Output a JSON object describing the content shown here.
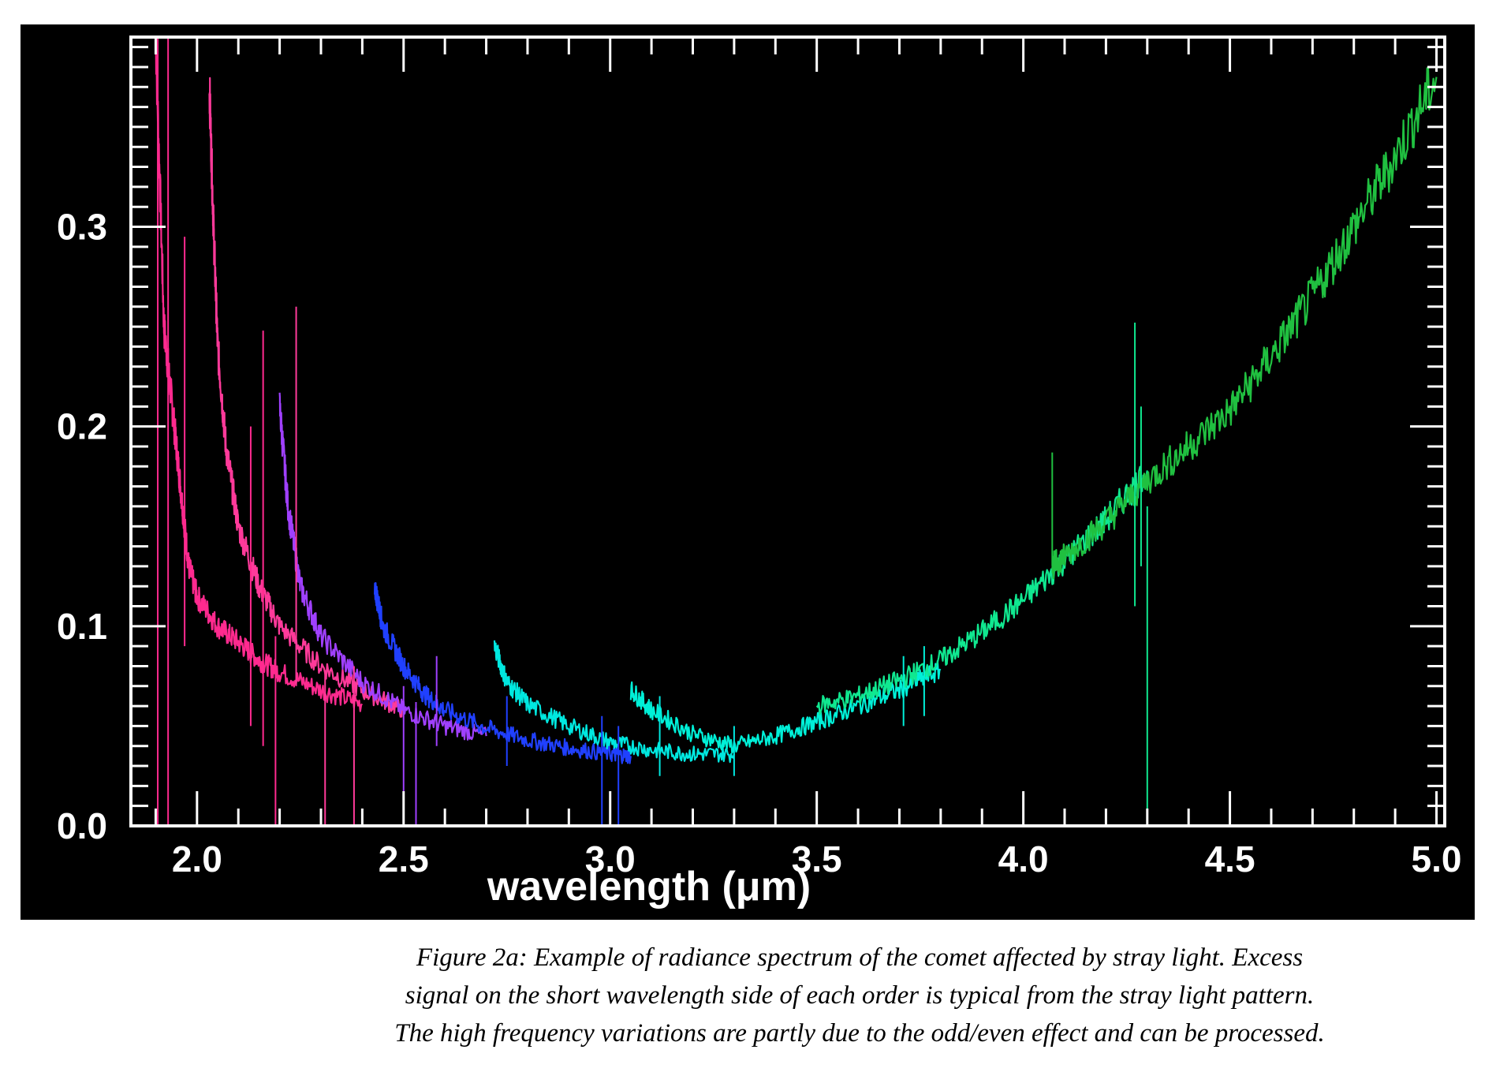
{
  "caption": {
    "lines": [
      "Figure 2a: Example of radiance spectrum of the comet affected by stray light. Excess",
      "signal on the short wavelength side of each order is typical from the stray light pattern.",
      "The high frequency variations are partly due to the odd/even effect and can be processed."
    ]
  },
  "chart_data": {
    "type": "line",
    "title": "",
    "xlabel": "wavelength (μm)",
    "ylabel": "",
    "xlim": [
      1.84,
      5.02
    ],
    "ylim": [
      0.0,
      0.395
    ],
    "x_ticks": [
      2.0,
      2.5,
      3.0,
      3.5,
      4.0,
      4.5,
      5.0
    ],
    "x_tick_labels": [
      "2.0",
      "2.5",
      "3.0",
      "3.5",
      "4.0",
      "4.5",
      "5.0"
    ],
    "y_ticks": [
      0.0,
      0.1,
      0.2,
      0.3
    ],
    "y_tick_labels": [
      "0.0",
      "0.1",
      "0.2",
      "0.3"
    ],
    "grid": false,
    "legend": "none",
    "background": "#000000",
    "foreground": "#ffffff",
    "series": [
      {
        "color": "#ff2a8f",
        "x": [
          1.9,
          1.92,
          1.94,
          1.96,
          1.98,
          2.0,
          2.05,
          2.1,
          2.15,
          2.2,
          2.3,
          2.4
        ],
        "y": [
          0.395,
          0.25,
          0.21,
          0.17,
          0.13,
          0.115,
          0.1,
          0.092,
          0.083,
          0.077,
          0.068,
          0.061
        ]
      },
      {
        "color": "#ff3a9a",
        "x": [
          2.03,
          2.04,
          2.05,
          2.07,
          2.1,
          2.15,
          2.2,
          2.3,
          2.4,
          2.5
        ],
        "y": [
          0.37,
          0.3,
          0.24,
          0.19,
          0.15,
          0.12,
          0.1,
          0.08,
          0.068,
          0.058
        ]
      },
      {
        "color": "#a040ff",
        "x": [
          2.2,
          2.22,
          2.25,
          2.3,
          2.4,
          2.5,
          2.6,
          2.7
        ],
        "y": [
          0.21,
          0.16,
          0.12,
          0.095,
          0.072,
          0.058,
          0.05,
          0.045
        ]
      },
      {
        "color": "#2040ff",
        "x": [
          2.43,
          2.45,
          2.5,
          2.55,
          2.6,
          2.7,
          2.8,
          2.9,
          3.0,
          3.05
        ],
        "y": [
          0.12,
          0.1,
          0.08,
          0.066,
          0.058,
          0.049,
          0.043,
          0.039,
          0.036,
          0.035
        ]
      },
      {
        "color": "#00e8e0",
        "x": [
          2.72,
          2.75,
          2.8,
          2.9,
          3.0,
          3.1,
          3.2,
          3.3
        ],
        "y": [
          0.09,
          0.072,
          0.061,
          0.05,
          0.042,
          0.038,
          0.036,
          0.036
        ]
      },
      {
        "color": "#00f0d8",
        "x": [
          3.05,
          3.1,
          3.2,
          3.3,
          3.4,
          3.5,
          3.6,
          3.7,
          3.8
        ],
        "y": [
          0.068,
          0.058,
          0.046,
          0.04,
          0.045,
          0.052,
          0.06,
          0.068,
          0.078
        ]
      },
      {
        "color": "#10e890",
        "x": [
          3.5,
          3.6,
          3.7,
          3.8,
          3.9,
          4.0,
          4.1,
          4.2,
          4.3
        ],
        "y": [
          0.06,
          0.065,
          0.073,
          0.083,
          0.097,
          0.113,
          0.133,
          0.153,
          0.178
        ]
      },
      {
        "color": "#20c040",
        "x": [
          4.07,
          4.1,
          4.2,
          4.3,
          4.4,
          4.5,
          4.6,
          4.7,
          4.8,
          4.9,
          5.0
        ],
        "y": [
          0.13,
          0.135,
          0.152,
          0.173,
          0.19,
          0.208,
          0.235,
          0.265,
          0.3,
          0.335,
          0.375
        ]
      }
    ],
    "spikes": [
      {
        "x": 1.905,
        "y0": 0.0,
        "y1": 0.395,
        "color": "#ff2a8f"
      },
      {
        "x": 1.93,
        "y0": 0.0,
        "y1": 0.395,
        "color": "#ff2a8f"
      },
      {
        "x": 1.97,
        "y0": 0.09,
        "y1": 0.295,
        "color": "#ff2a8f"
      },
      {
        "x": 2.13,
        "y0": 0.05,
        "y1": 0.2,
        "color": "#ff2a8f"
      },
      {
        "x": 2.16,
        "y0": 0.04,
        "y1": 0.248,
        "color": "#ff2a8f"
      },
      {
        "x": 2.19,
        "y0": 0.0,
        "y1": 0.095,
        "color": "#ff2a8f"
      },
      {
        "x": 2.24,
        "y0": 0.07,
        "y1": 0.26,
        "color": "#ff3a9a"
      },
      {
        "x": 2.31,
        "y0": 0.0,
        "y1": 0.078,
        "color": "#ff3a9a"
      },
      {
        "x": 2.38,
        "y0": 0.0,
        "y1": 0.08,
        "color": "#ff3a9a"
      },
      {
        "x": 2.5,
        "y0": 0.0,
        "y1": 0.07,
        "color": "#a040ff"
      },
      {
        "x": 2.53,
        "y0": 0.0,
        "y1": 0.062,
        "color": "#a040ff"
      },
      {
        "x": 2.58,
        "y0": 0.04,
        "y1": 0.085,
        "color": "#a040ff"
      },
      {
        "x": 2.75,
        "y0": 0.03,
        "y1": 0.065,
        "color": "#2040ff"
      },
      {
        "x": 2.98,
        "y0": 0.0,
        "y1": 0.055,
        "color": "#2040ff"
      },
      {
        "x": 3.02,
        "y0": 0.0,
        "y1": 0.05,
        "color": "#2040ff"
      },
      {
        "x": 3.12,
        "y0": 0.025,
        "y1": 0.065,
        "color": "#00e8e0"
      },
      {
        "x": 3.3,
        "y0": 0.025,
        "y1": 0.05,
        "color": "#00e8e0"
      },
      {
        "x": 3.71,
        "y0": 0.05,
        "y1": 0.085,
        "color": "#00f0d8"
      },
      {
        "x": 3.76,
        "y0": 0.055,
        "y1": 0.09,
        "color": "#00f0d8"
      },
      {
        "x": 4.07,
        "y0": 0.13,
        "y1": 0.187,
        "color": "#20c040"
      },
      {
        "x": 4.27,
        "y0": 0.11,
        "y1": 0.252,
        "color": "#10e890"
      },
      {
        "x": 4.285,
        "y0": 0.13,
        "y1": 0.21,
        "color": "#10e890"
      },
      {
        "x": 4.3,
        "y0": 0.0,
        "y1": 0.16,
        "color": "#10e890"
      }
    ]
  }
}
